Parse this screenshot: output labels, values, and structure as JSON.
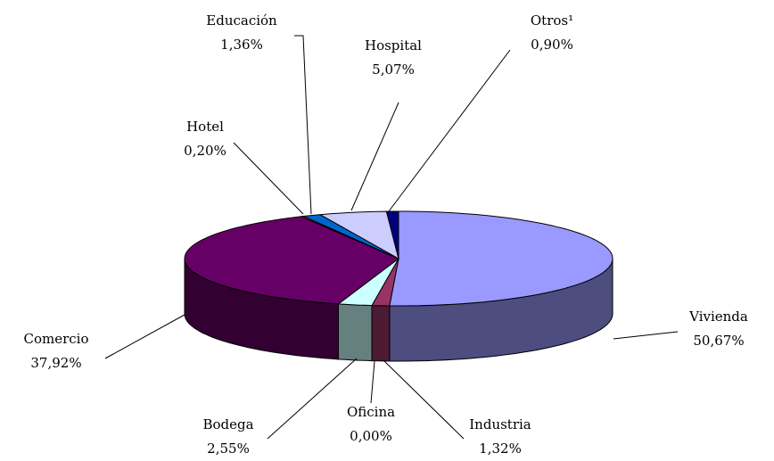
{
  "chart_data": {
    "type": "pie",
    "categories": [
      "Vivienda",
      "Industria",
      "Oficina",
      "Bodega",
      "Comercio",
      "Hotel",
      "Educación",
      "Hospital",
      "Otros¹"
    ],
    "values": [
      50.67,
      1.32,
      0.0,
      2.55,
      37.92,
      0.2,
      1.36,
      5.07,
      0.9
    ],
    "value_labels": [
      "50,67%",
      "1,32%",
      "0,00%",
      "2,55%",
      "37,92%",
      "0,20%",
      "1,36%",
      "5,07%",
      "0,90%"
    ],
    "colors": [
      "#9999ff",
      "#993366",
      "#ffffcc",
      "#ccffff",
      "#660066",
      "#ff8080",
      "#0066cc",
      "#ccccff",
      "#000080"
    ]
  }
}
